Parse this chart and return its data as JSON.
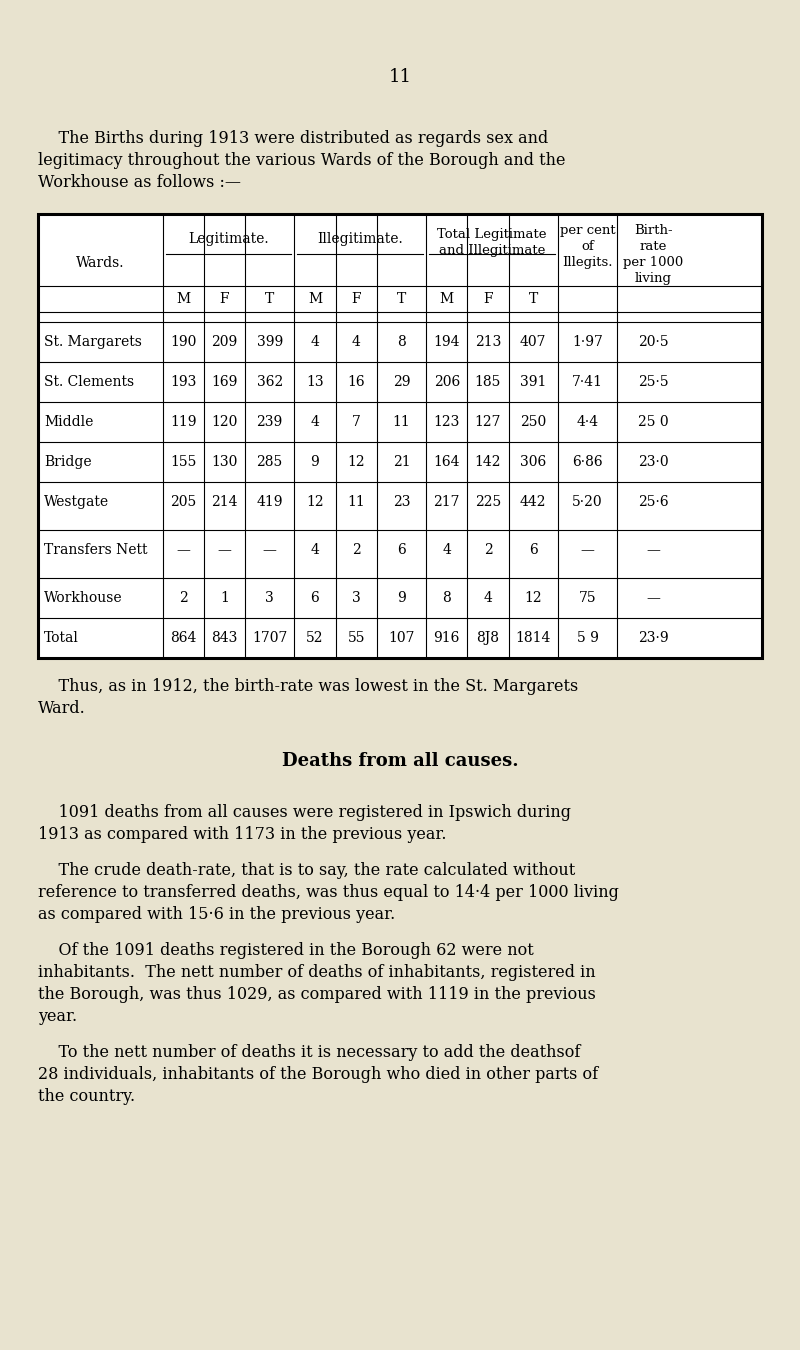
{
  "bg_color": "#e8e3cf",
  "page_number": "11",
  "intro_lines": [
    "    The Births during 1913 were distributed as regards sex and",
    "legitimacy throughout the various Wards of the Borough and the",
    "Workhouse as follows :—"
  ],
  "table_rows": [
    [
      "St. Margarets",
      "190",
      "209",
      "399",
      "4",
      "4",
      "8",
      "194",
      "213",
      "407",
      "1·97",
      "20·5"
    ],
    [
      "St. Clements",
      "193",
      "169",
      "362",
      "13",
      "16",
      "29",
      "206",
      "185",
      "391",
      "7·41",
      "25·5"
    ],
    [
      "Middle",
      "119",
      "120",
      "239",
      "4",
      "7",
      "11",
      "123",
      "127",
      "250",
      "4·4",
      "25 0"
    ],
    [
      "Bridge",
      "155",
      "130",
      "285",
      "9",
      "12",
      "21",
      "164",
      "142",
      "306",
      "6·86",
      "23·0"
    ],
    [
      "Westgate",
      "205",
      "214",
      "419",
      "12",
      "11",
      "23",
      "217",
      "225",
      "442",
      "5·20",
      "25·6"
    ],
    [
      "Transfers Nett",
      "—",
      "—",
      "—",
      "4",
      "2",
      "6",
      "4",
      "2",
      "6",
      "—",
      "—"
    ],
    [
      "Workhouse",
      "2",
      "1",
      "3",
      "6",
      "3",
      "9",
      "8",
      "4",
      "12",
      "75",
      "—"
    ],
    [
      "Total",
      "864",
      "843",
      "1707",
      "52",
      "55",
      "107",
      "916",
      "8J8",
      "1814",
      "5 9",
      "23·9"
    ]
  ],
  "after_table_lines": [
    "    Thus, as in 1912, the birth-rate was lowest in the St. Margarets",
    "Ward."
  ],
  "section_title": "Deaths from all causes.",
  "paragraphs": [
    [
      "    1091 deaths from all causes were registered in Ipswich during",
      "1913 as compared with 1173 in the previous year."
    ],
    [
      "    The crude death-rate, that is to say, the rate calculated without",
      "reference to transferred deaths, was thus equal to 14·4 per 1000 living",
      "as compared with 15·6 in the previous year."
    ],
    [
      "    Of the 1091 deaths registered in the Borough 62 were not",
      "inhabitants.  The nett number of deaths of inhabitants, registered in",
      "the Borough, was thus 1029, as compared with 1119 in the previous",
      "year."
    ],
    [
      "    To the nett number of deaths it is necessary to add the deathsof",
      "28 individuals, inhabitants of the Borough who died in other parts of",
      "the country."
    ]
  ],
  "fs_body": 11.5,
  "fs_table": 10.0,
  "fs_header": 9.5,
  "fs_pagenum": 13,
  "fs_section": 13
}
